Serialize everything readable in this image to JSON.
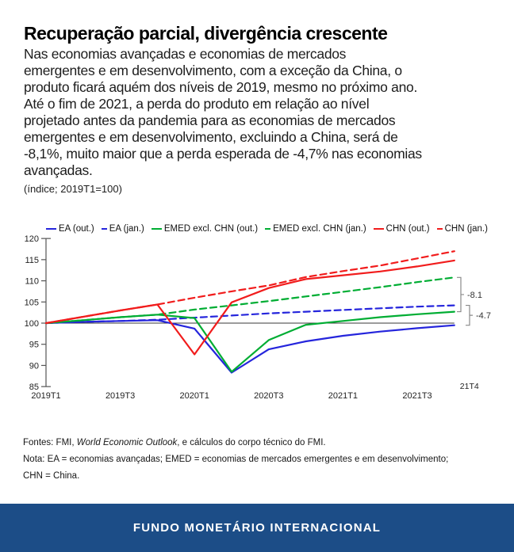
{
  "header": {
    "title": "Recuperação parcial, divergência crescente",
    "body_lines": [
      "Nas economias avançadas e economias de mercados",
      "emergentes e em desenvolvimento, com a exceção da China, o",
      "produto ficará aquém dos níveis de 2019, mesmo no próximo ano.",
      "Até o fim de 2021, a perda do produto em relação ao nível",
      "projetado antes da pandemia para as economias de mercados",
      "emergentes e em desenvolvimento, excluindo a China, será de",
      "-8,1%, muito maior que a perda esperada de -4,7% nas economias",
      "avançadas."
    ],
    "index_note": "(índice; 2019T1=100)"
  },
  "chart_data": {
    "type": "line",
    "title": "Recuperação parcial, divergência crescente",
    "unit": "(índice; 2019T1=100)",
    "x": [
      "2019T1",
      "2019T2",
      "2019T3",
      "2019T4",
      "2020T1",
      "2020T2",
      "2020T3",
      "2020T4",
      "2021T1",
      "2021T2",
      "2021T3",
      "2021T4"
    ],
    "x_axis_tick_labels": [
      "2019T1",
      "2019T3",
      "2020T1",
      "2020T3",
      "2021T1",
      "2021T3"
    ],
    "end_point_label": "21T4",
    "y_ticks": [
      120,
      115,
      110,
      105,
      100,
      95,
      90,
      85
    ],
    "ylim": [
      85,
      120
    ],
    "baseline": 100,
    "grid": false,
    "legend_position": "top",
    "series": [
      {
        "name": "EA (jan.)",
        "color": "#2525dc",
        "style": "dashed",
        "values": [
          100,
          100.3,
          100.5,
          100.8,
          101.3,
          101.8,
          102.3,
          102.7,
          103.1,
          103.5,
          103.9,
          104.2
        ]
      },
      {
        "name": "EA (out.)",
        "color": "#2525dc",
        "style": "solid",
        "values": [
          100,
          100.3,
          100.5,
          100.7,
          98.7,
          88.3,
          93.8,
          95.7,
          97.0,
          98.0,
          98.8,
          99.5
        ]
      },
      {
        "name": "EMED excl. CHN (jan.)",
        "color": "#00ad33",
        "style": "dashed",
        "values": [
          100,
          100.7,
          101.4,
          102.0,
          103.2,
          104.2,
          105.2,
          106.3,
          107.4,
          108.5,
          109.7,
          110.8
        ]
      },
      {
        "name": "EMED excl. CHN (out.)",
        "color": "#00ad33",
        "style": "solid",
        "values": [
          100,
          100.7,
          101.4,
          102.0,
          101.2,
          88.5,
          96.0,
          99.6,
          100.5,
          101.4,
          102.1,
          102.7
        ]
      },
      {
        "name": "CHN (jan.)",
        "color": "#f11c1c",
        "style": "dashed",
        "values": [
          100,
          101.5,
          103.0,
          104.4,
          106.0,
          107.5,
          108.9,
          110.9,
          112.3,
          113.6,
          115.3,
          117.0
        ]
      },
      {
        "name": "CHN (out.)",
        "color": "#f11c1c",
        "style": "solid",
        "values": [
          100,
          101.5,
          103.0,
          104.4,
          92.6,
          104.9,
          108.3,
          110.4,
          111.3,
          112.2,
          113.4,
          114.8
        ]
      }
    ],
    "legend_order": [
      "EA (out.)",
      "EA (jan.)",
      "EMED excl. CHN (out.)",
      "EMED excl. CHN (jan.)",
      "CHN (out.)",
      "CHN (jan.)"
    ],
    "annotations": [
      {
        "label": "-8.1",
        "from_series": "EMED excl. CHN (jan.)",
        "to_series": "EMED excl. CHN (out.)",
        "at": "2021T4"
      },
      {
        "label": "-4.7",
        "from_series": "EA (jan.)",
        "to_series": "EA (out.)",
        "at": "2021T4"
      }
    ]
  },
  "footer": {
    "source_prefix": "Fontes: FMI, ",
    "source_italic": "World Economic Outlook",
    "source_suffix": ", e cálculos do corpo técnico do FMI.",
    "note_line_1": "Nota: EA = economias avançadas; EMED = economias de mercados emergentes e em desenvolvimento;",
    "note_line_2": "CHN = China."
  },
  "banner": {
    "label": "FUNDO MONETÁRIO INTERNACIONAL",
    "bg_color": "#1c4d87"
  }
}
